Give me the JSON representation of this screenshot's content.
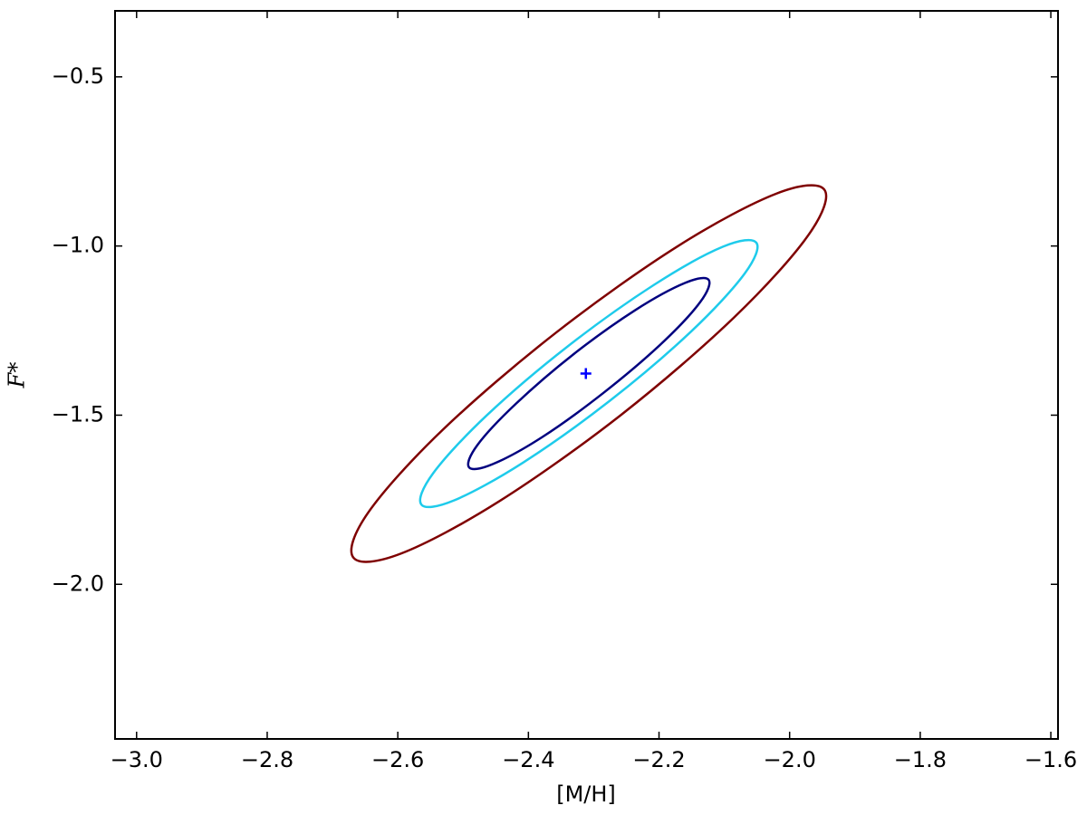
{
  "chart_data": {
    "type": "contour",
    "xlabel": "[M/H]",
    "ylabel": "F*",
    "xlim": [
      -3.033,
      -1.589
    ],
    "ylim": [
      -2.457,
      -0.305
    ],
    "xticks": [
      {
        "value": -3.0,
        "label": "−3.0"
      },
      {
        "value": -2.8,
        "label": "−2.8"
      },
      {
        "value": -2.6,
        "label": "−2.6"
      },
      {
        "value": -2.4,
        "label": "−2.4"
      },
      {
        "value": -2.2,
        "label": "−2.2"
      },
      {
        "value": -2.0,
        "label": "−2.0"
      },
      {
        "value": -1.8,
        "label": "−1.8"
      },
      {
        "value": -1.6,
        "label": "−1.6"
      }
    ],
    "yticks": [
      {
        "value": -0.5,
        "label": "−0.5"
      },
      {
        "value": -1.0,
        "label": "−1.0"
      },
      {
        "value": -1.5,
        "label": "−1.5"
      },
      {
        "value": -2.0,
        "label": "−2.0"
      }
    ],
    "grid": false,
    "series": [
      {
        "color": "#7f0000",
        "x": [
          -1.947,
          -1.971,
          -2.085,
          -2.258,
          -2.445,
          -2.595,
          -2.668,
          -2.645,
          -2.531,
          -2.357,
          -2.17,
          -2.02
        ],
        "y": [
          -0.833,
          -0.967,
          -1.211,
          -1.499,
          -1.755,
          -1.909,
          -1.921,
          -1.787,
          -1.543,
          -1.255,
          -0.999,
          -0.845
        ]
      },
      {
        "color": "#1ecbeb",
        "x": [
          -2.051,
          -2.069,
          -2.151,
          -2.275,
          -2.408,
          -2.514,
          -2.564,
          -2.546,
          -2.464,
          -2.34,
          -2.207,
          -2.102
        ],
        "y": [
          -0.99,
          -1.082,
          -1.253,
          -1.457,
          -1.64,
          -1.752,
          -1.764,
          -1.672,
          -1.501,
          -1.297,
          -1.114,
          -1.002
        ]
      },
      {
        "color": "#00007f",
        "x": [
          -2.124,
          -2.137,
          -2.196,
          -2.285,
          -2.379,
          -2.455,
          -2.491,
          -2.478,
          -2.419,
          -2.331,
          -2.236,
          -2.16
        ],
        "y": [
          -1.1,
          -1.166,
          -1.288,
          -1.434,
          -1.565,
          -1.645,
          -1.654,
          -1.588,
          -1.466,
          -1.32,
          -1.189,
          -1.109
        ]
      }
    ],
    "points": [
      {
        "x": -2.312,
        "y": -1.377,
        "color": "#0000ff"
      }
    ]
  }
}
